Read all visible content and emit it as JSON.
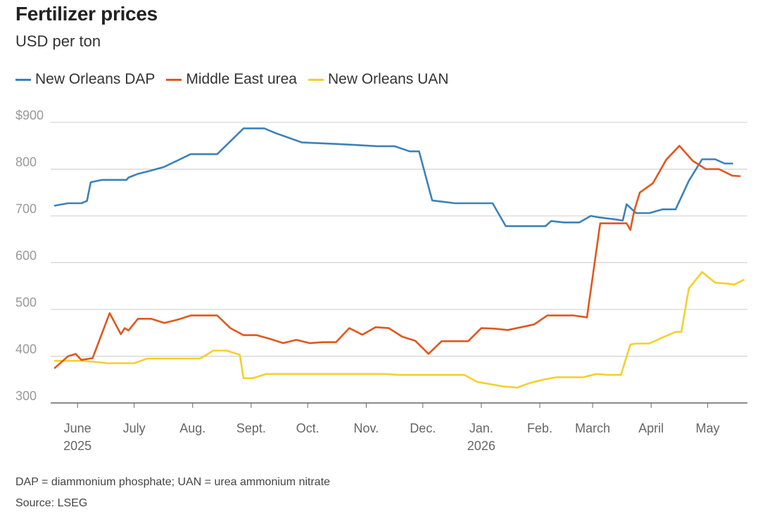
{
  "header": {
    "title": "Fertilizer prices",
    "subtitle": "USD per ton"
  },
  "footer": {
    "note": "DAP = diammonium phosphate; UAN = urea ammonium nitrate",
    "source": "Source: LSEG"
  },
  "colors": {
    "dap": "#3b82b9",
    "urea": "#e0571d",
    "uan": "#f5cf2b",
    "grid": "#cccccc",
    "axis": "#666666"
  },
  "chart_data": {
    "type": "line",
    "title": "Fertilizer prices",
    "subtitle": "USD per ton",
    "ylim": [
      300,
      900
    ],
    "yticks": [
      300,
      400,
      500,
      600,
      700,
      800,
      900
    ],
    "ytick_labels": [
      "300",
      "400",
      "500",
      "600",
      "700",
      "800",
      "$900"
    ],
    "xlim": [
      "2025-05-20",
      "2026-05-22"
    ],
    "xticks": [
      {
        "date": "2025-06-01",
        "label": "June",
        "sublabel": "2025"
      },
      {
        "date": "2025-07-01",
        "label": "July",
        "sublabel": ""
      },
      {
        "date": "2025-08-01",
        "label": "Aug.",
        "sublabel": ""
      },
      {
        "date": "2025-09-01",
        "label": "Sept.",
        "sublabel": ""
      },
      {
        "date": "2025-10-01",
        "label": "Oct.",
        "sublabel": ""
      },
      {
        "date": "2025-11-01",
        "label": "Nov.",
        "sublabel": ""
      },
      {
        "date": "2025-12-01",
        "label": "Dec.",
        "sublabel": ""
      },
      {
        "date": "2026-01-01",
        "label": "Jan.",
        "sublabel": "2026"
      },
      {
        "date": "2026-02-01",
        "label": "Feb.",
        "sublabel": ""
      },
      {
        "date": "2026-03-01",
        "label": "March",
        "sublabel": ""
      },
      {
        "date": "2026-04-01",
        "label": "April",
        "sublabel": ""
      },
      {
        "date": "2026-05-01",
        "label": "May",
        "sublabel": ""
      }
    ],
    "grid": true,
    "legend_position": "top-left",
    "series": [
      {
        "name": "New Orleans DAP",
        "color": "#3b82b9",
        "x": [
          "2025-05-20",
          "2025-05-27",
          "2025-06-03",
          "2025-06-06",
          "2025-06-08",
          "2025-06-14",
          "2025-06-27",
          "2025-06-28",
          "2025-07-03",
          "2025-07-10",
          "2025-07-17",
          "2025-07-31",
          "2025-08-07",
          "2025-08-14",
          "2025-08-28",
          "2025-09-01",
          "2025-09-08",
          "2025-09-14",
          "2025-09-28",
          "2025-10-15",
          "2025-10-25",
          "2025-11-07",
          "2025-11-09",
          "2025-11-16",
          "2025-11-24",
          "2025-11-29",
          "2025-12-06",
          "2025-12-18",
          "2025-12-23",
          "2026-01-07",
          "2026-01-14",
          "2026-01-19",
          "2026-01-29",
          "2026-02-04",
          "2026-02-07",
          "2026-02-14",
          "2026-02-22",
          "2026-02-28",
          "2026-03-04",
          "2026-03-08",
          "2026-03-14",
          "2026-03-17",
          "2026-03-19",
          "2026-03-24",
          "2026-03-31",
          "2026-04-07",
          "2026-04-14",
          "2026-04-21",
          "2026-04-28",
          "2026-05-05",
          "2026-05-10",
          "2026-05-14"
        ],
        "values": [
          722,
          727,
          727,
          732,
          772,
          777,
          777,
          782,
          790,
          797,
          805,
          832,
          832,
          832,
          887,
          887,
          887,
          877,
          857,
          854,
          852,
          849,
          849,
          849,
          838,
          838,
          733,
          727,
          727,
          727,
          678,
          678,
          678,
          678,
          689,
          686,
          686,
          700,
          697,
          695,
          692,
          690,
          725,
          706,
          706,
          714,
          714,
          775,
          821,
          821,
          812,
          812
        ]
      },
      {
        "name": "Middle East urea",
        "color": "#e0571d",
        "x": [
          "2025-05-20",
          "2025-05-27",
          "2025-05-31",
          "2025-06-03",
          "2025-06-09",
          "2025-06-18",
          "2025-06-24",
          "2025-06-26",
          "2025-06-28",
          "2025-07-03",
          "2025-07-10",
          "2025-07-17",
          "2025-07-24",
          "2025-07-31",
          "2025-08-07",
          "2025-08-14",
          "2025-08-21",
          "2025-08-28",
          "2025-09-04",
          "2025-09-11",
          "2025-09-18",
          "2025-09-25",
          "2025-10-02",
          "2025-10-09",
          "2025-10-16",
          "2025-10-23",
          "2025-10-30",
          "2025-11-06",
          "2025-11-13",
          "2025-11-20",
          "2025-11-27",
          "2025-12-04",
          "2025-12-11",
          "2025-12-18",
          "2025-12-25",
          "2026-01-01",
          "2026-01-08",
          "2026-01-15",
          "2026-01-22",
          "2026-01-29",
          "2026-02-05",
          "2026-02-12",
          "2026-02-19",
          "2026-02-26",
          "2026-03-05",
          "2026-03-12",
          "2026-03-19",
          "2026-03-21",
          "2026-03-23",
          "2026-03-26",
          "2026-04-02",
          "2026-04-09",
          "2026-04-16",
          "2026-04-23",
          "2026-04-30",
          "2026-05-07",
          "2026-05-14",
          "2026-05-18"
        ],
        "values": [
          375,
          400,
          405,
          392,
          396,
          492,
          447,
          460,
          455,
          480,
          480,
          471,
          478,
          487,
          487,
          487,
          460,
          445,
          445,
          437,
          428,
          435,
          428,
          430,
          430,
          460,
          446,
          462,
          460,
          442,
          433,
          405,
          432,
          432,
          432,
          460,
          459,
          456,
          462,
          468,
          487,
          487,
          487,
          483,
          684,
          684,
          684,
          670,
          710,
          750,
          770,
          820,
          850,
          818,
          800,
          800,
          786,
          785
        ]
      },
      {
        "name": "New Orleans UAN",
        "color": "#f5cf2b",
        "x": [
          "2025-05-20",
          "2025-05-27",
          "2025-06-03",
          "2025-06-10",
          "2025-06-17",
          "2025-06-24",
          "2025-07-01",
          "2025-07-08",
          "2025-07-15",
          "2025-07-22",
          "2025-07-29",
          "2025-08-05",
          "2025-08-12",
          "2025-08-19",
          "2025-08-26",
          "2025-08-28",
          "2025-09-02",
          "2025-09-09",
          "2025-09-16",
          "2025-09-23",
          "2025-09-30",
          "2025-10-07",
          "2025-10-14",
          "2025-10-21",
          "2025-10-28",
          "2025-11-04",
          "2025-11-11",
          "2025-11-18",
          "2025-11-25",
          "2025-12-02",
          "2025-12-09",
          "2025-12-16",
          "2025-12-23",
          "2025-12-30",
          "2026-01-06",
          "2026-01-13",
          "2026-01-20",
          "2026-01-27",
          "2026-02-03",
          "2026-02-10",
          "2026-02-17",
          "2026-02-24",
          "2026-03-03",
          "2026-03-09",
          "2026-03-12",
          "2026-03-16",
          "2026-03-21",
          "2026-03-24",
          "2026-03-31",
          "2026-04-07",
          "2026-04-14",
          "2026-04-17",
          "2026-04-21",
          "2026-04-28",
          "2026-05-05",
          "2026-05-12",
          "2026-05-15",
          "2026-05-20"
        ],
        "values": [
          390,
          390,
          390,
          388,
          385,
          385,
          385,
          395,
          395,
          395,
          395,
          395,
          412,
          412,
          403,
          353,
          353,
          362,
          362,
          362,
          362,
          362,
          362,
          362,
          362,
          362,
          362,
          360,
          360,
          360,
          360,
          360,
          360,
          345,
          340,
          335,
          333,
          343,
          350,
          355,
          355,
          355,
          362,
          360,
          360,
          360,
          425,
          427,
          427,
          440,
          452,
          452,
          545,
          580,
          557,
          555,
          553,
          563
        ]
      }
    ]
  }
}
